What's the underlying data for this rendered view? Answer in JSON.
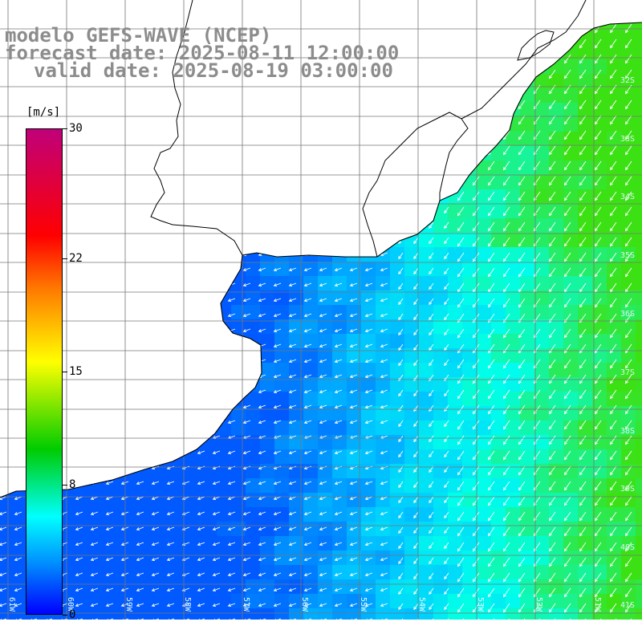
{
  "title": {
    "line1": "modelo GEFS-WAVE (NCEP)",
    "line2": "forecast date: 2025-08-11 12:00:00",
    "line3": "valid date: 2025-08-19 03:00:00"
  },
  "colorbar": {
    "unit": "[m/s]",
    "ticks": [
      {
        "value": 30,
        "label": "30"
      },
      {
        "value": 22,
        "label": "22"
      },
      {
        "value": 15,
        "label": "15"
      },
      {
        "value": 8,
        "label": "8"
      },
      {
        "value": 0,
        "label": "0"
      }
    ],
    "colors": [
      "#c0007a",
      "#ff0000",
      "#ff7a00",
      "#ffff00",
      "#00cc00",
      "#00ffff",
      "#0088ff",
      "#0000ff"
    ]
  },
  "map": {
    "land_color": "#ffffff",
    "grid_color": "#777777",
    "coastline_color": "#000000",
    "arrow_color": "#ffffff",
    "lat_labels": [
      "32S",
      "33S",
      "34S",
      "35S",
      "36S",
      "37S",
      "38S",
      "39S",
      "40S",
      "41S"
    ],
    "lon_labels": [
      "61W",
      "60W",
      "59W",
      "58W",
      "57W",
      "56W",
      "55W",
      "54W",
      "53W",
      "52W",
      "51W"
    ],
    "wind_direction": "southwest-going (from northeast)"
  }
}
